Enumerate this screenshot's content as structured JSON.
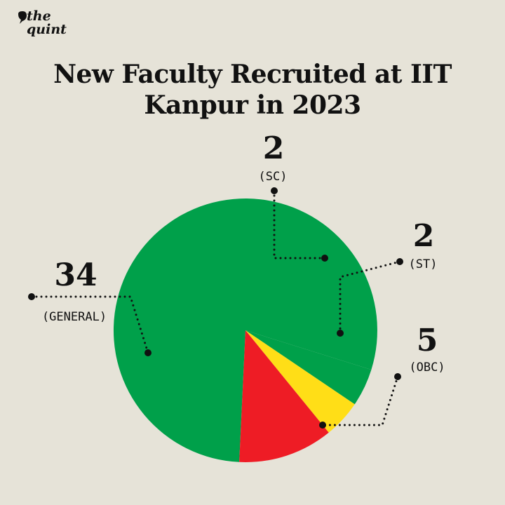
{
  "brand": {
    "line1": "the",
    "line2": "quint"
  },
  "chart_data": {
    "type": "pie",
    "title_lines": [
      "New Faculty Recruited at IIT",
      "Kanpur in 2023"
    ],
    "slices": [
      {
        "label": "(GENERAL)",
        "value": 34,
        "color": "#00a04a"
      },
      {
        "label": "(SC)",
        "value": 2,
        "color": "#00a04a"
      },
      {
        "label": "(ST)",
        "value": 2,
        "color": "#ffde17"
      },
      {
        "label": "(OBC)",
        "value": 5,
        "color": "#ee1c25"
      },
      {
        "label": "",
        "value": 0,
        "color": "#2a5ecd"
      }
    ],
    "legend": "none",
    "grid": false
  }
}
